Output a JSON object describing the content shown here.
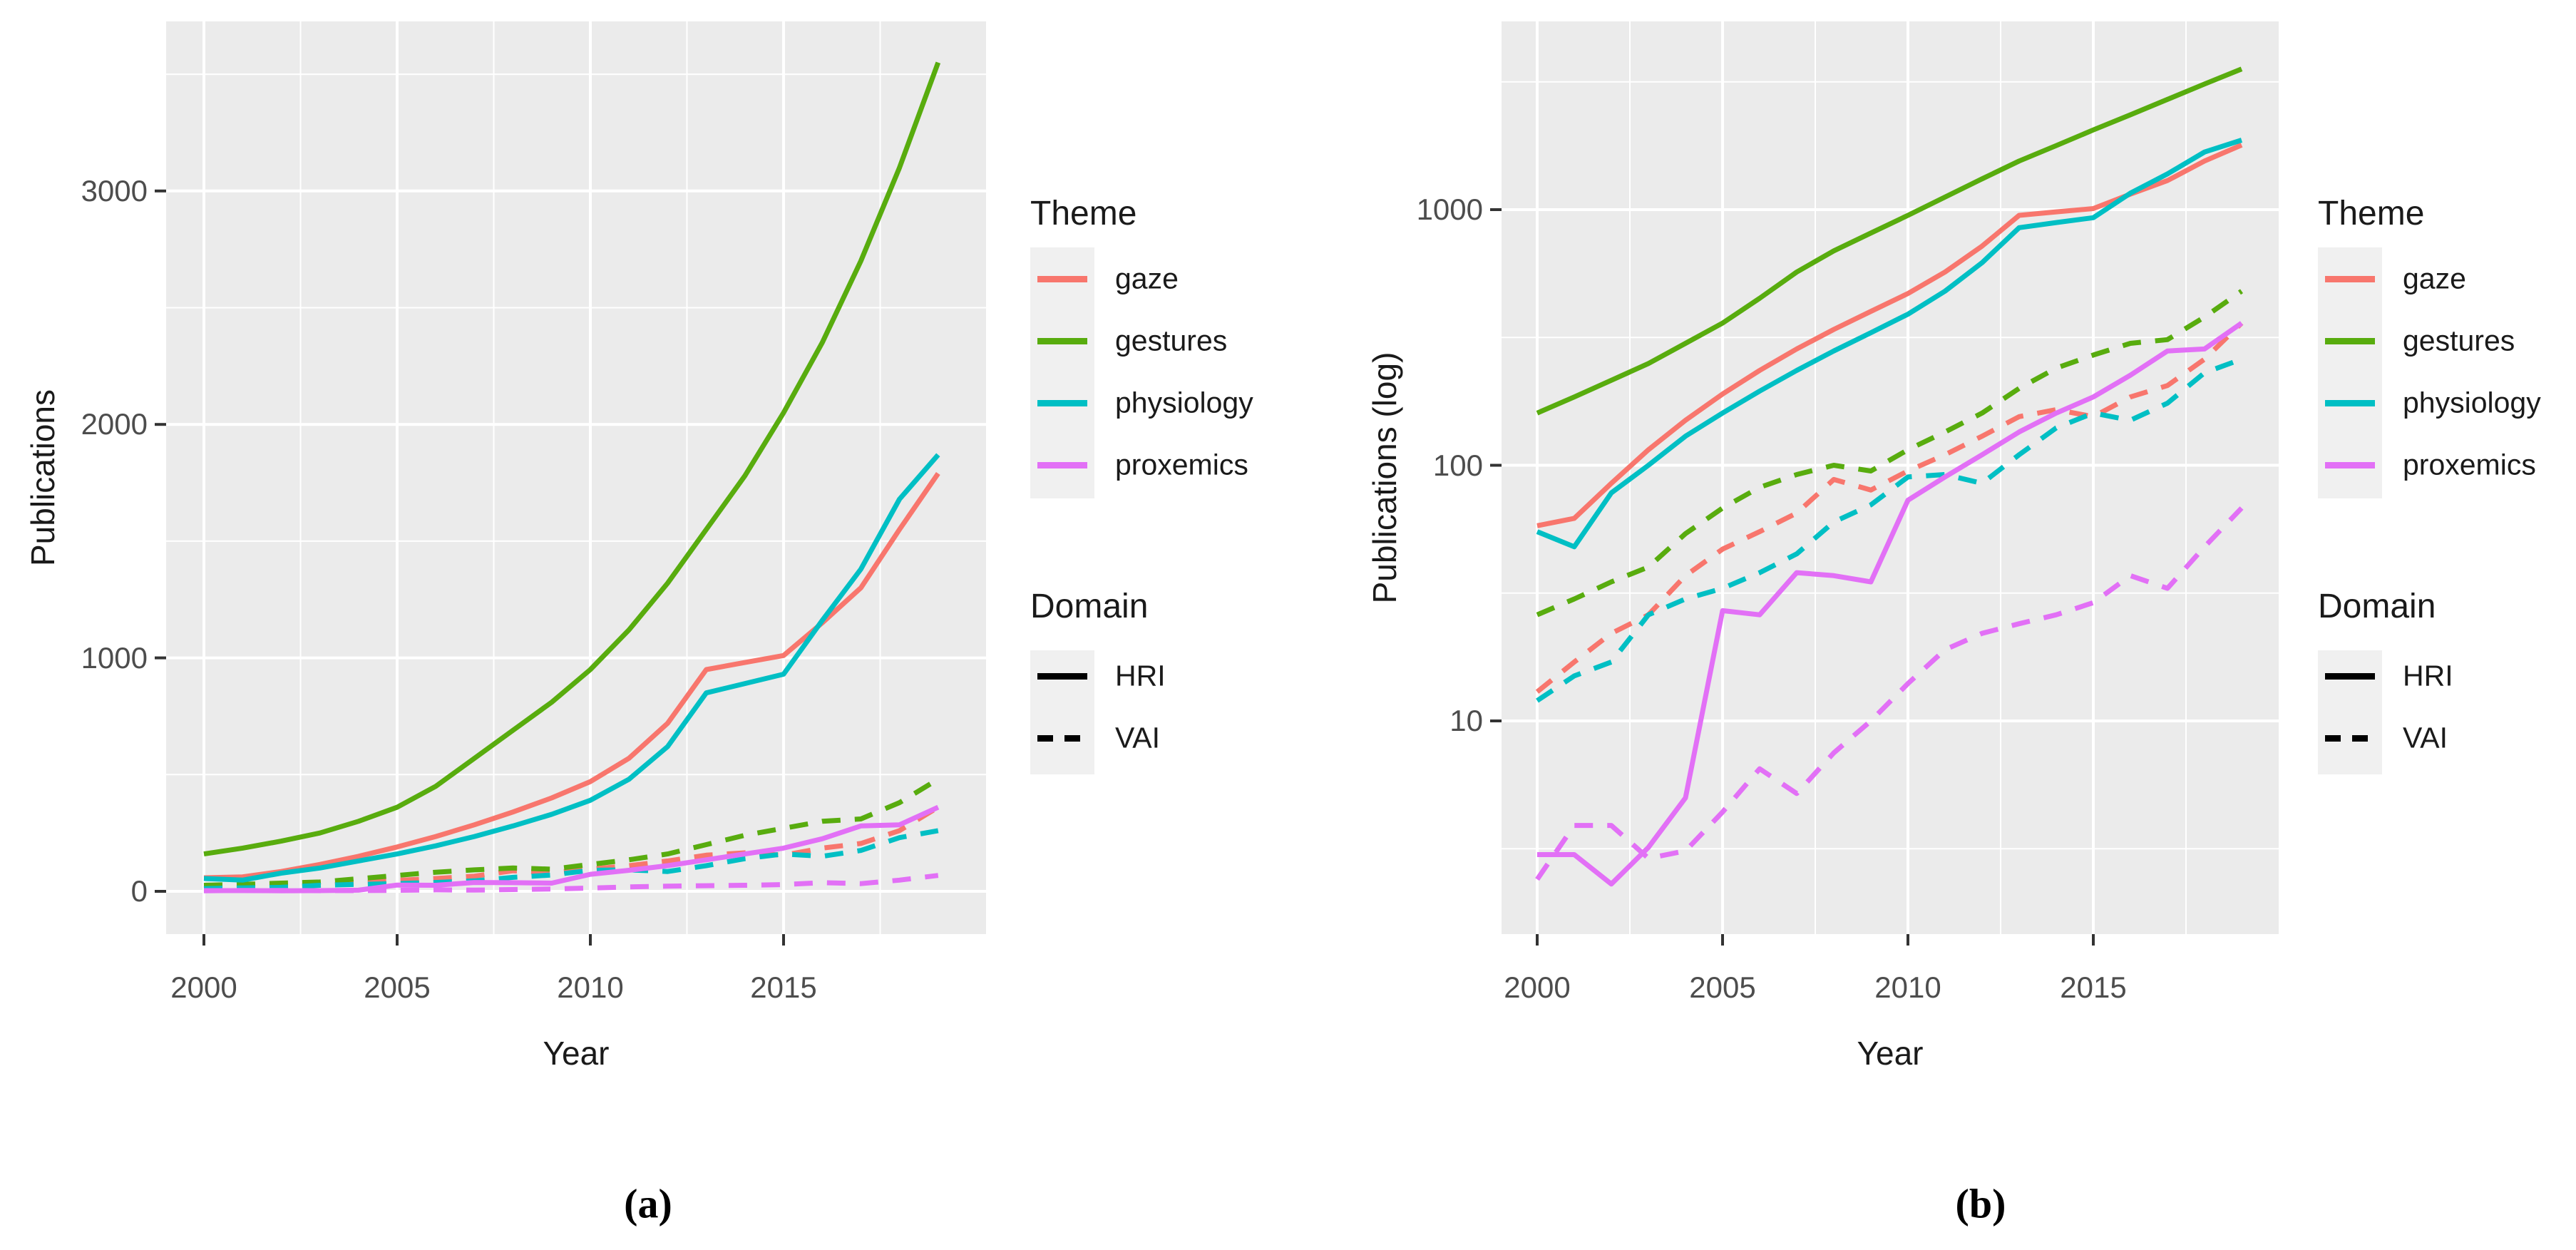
{
  "figure": {
    "captions": {
      "a": "(a)",
      "b": "(b)"
    }
  },
  "legend": {
    "theme": {
      "title": "Theme",
      "items": [
        {
          "label": "gaze",
          "color": "#F8766D"
        },
        {
          "label": "gestures",
          "color": "#58AC0E"
        },
        {
          "label": "physiology",
          "color": "#00BFC4"
        },
        {
          "label": "proxemics",
          "color": "#E270F6"
        }
      ]
    },
    "domain": {
      "title": "Domain",
      "items": [
        {
          "label": "HRI",
          "linetype": "solid"
        },
        {
          "label": "VAI",
          "linetype": "dashed"
        }
      ]
    }
  },
  "chart_data": [
    {
      "type": "line",
      "id": "a",
      "xlabel": "Year",
      "ylabel": "Publications",
      "y_scale": "linear",
      "x_ticks": [
        2000,
        2005,
        2010,
        2015
      ],
      "y_ticks": [
        0,
        1000,
        2000,
        3000
      ],
      "xlim": [
        1999.0,
        2020.3
      ],
      "ylim": [
        -180,
        3760
      ],
      "grid": true,
      "legend_position": "right",
      "x": [
        2000,
        2001,
        2002,
        2003,
        2004,
        2005,
        2006,
        2007,
        2008,
        2009,
        2010,
        2011,
        2012,
        2013,
        2014,
        2015,
        2016,
        2017,
        2018,
        2019
      ],
      "series": [
        {
          "name": "gaze HRI",
          "theme": "gaze",
          "domain": "HRI",
          "color": "#F8766D",
          "linetype": "solid",
          "values": [
            58,
            62,
            85,
            115,
            150,
            190,
            235,
            285,
            340,
            400,
            470,
            570,
            720,
            950,
            980,
            1010,
            1150,
            1300,
            1550,
            1790
          ]
        },
        {
          "name": "gaze VAI",
          "theme": "gaze",
          "domain": "VAI",
          "color": "#F8766D",
          "linetype": "dashed",
          "values": [
            13,
            17,
            22,
            26,
            37,
            47,
            55,
            65,
            88,
            80,
            95,
            110,
            130,
            155,
            165,
            155,
            185,
            205,
            260,
            360
          ]
        },
        {
          "name": "gestures HRI",
          "theme": "gestures",
          "domain": "HRI",
          "color": "#58AC0E",
          "linetype": "solid",
          "values": [
            160,
            185,
            215,
            250,
            300,
            360,
            450,
            570,
            690,
            810,
            950,
            1120,
            1320,
            1550,
            1780,
            2050,
            2350,
            2700,
            3100,
            3550
          ]
        },
        {
          "name": "gestures VAI",
          "theme": "gestures",
          "domain": "VAI",
          "color": "#58AC0E",
          "linetype": "dashed",
          "values": [
            26,
            30,
            35,
            40,
            54,
            68,
            82,
            92,
            100,
            95,
            115,
            135,
            160,
            200,
            240,
            270,
            300,
            310,
            380,
            480
          ]
        },
        {
          "name": "physiology HRI",
          "theme": "physiology",
          "domain": "HRI",
          "color": "#00BFC4",
          "linetype": "solid",
          "values": [
            55,
            48,
            78,
            100,
            130,
            160,
            195,
            235,
            280,
            330,
            390,
            480,
            620,
            850,
            890,
            930,
            1160,
            1380,
            1680,
            1870
          ]
        },
        {
          "name": "physiology VAI",
          "theme": "physiology",
          "domain": "VAI",
          "color": "#00BFC4",
          "linetype": "dashed",
          "values": [
            12,
            15,
            17,
            26,
            30,
            33,
            38,
            45,
            60,
            70,
            90,
            92,
            85,
            110,
            140,
            160,
            150,
            175,
            230,
            260
          ]
        },
        {
          "name": "proxemics HRI",
          "theme": "proxemics",
          "domain": "HRI",
          "color": "#E270F6",
          "linetype": "solid",
          "values": [
            3,
            3,
            2.3,
            3.2,
            5,
            27,
            26,
            38,
            37,
            35,
            73,
            90,
            110,
            135,
            160,
            185,
            225,
            280,
            285,
            360
          ]
        },
        {
          "name": "proxemics VAI",
          "theme": "proxemics",
          "domain": "VAI",
          "color": "#E270F6",
          "linetype": "dashed",
          "values": [
            2.4,
            3.9,
            3.9,
            2.9,
            3.1,
            4.4,
            6.5,
            5.2,
            7.5,
            10,
            14,
            19,
            22,
            24,
            26,
            29,
            37,
            33,
            48,
            68
          ]
        }
      ]
    },
    {
      "type": "line",
      "id": "b",
      "xlabel": "Year",
      "ylabel": "Publications (log)",
      "y_scale": "log",
      "x_ticks": [
        2000,
        2005,
        2010,
        2015
      ],
      "y_ticks": [
        10,
        100,
        1000
      ],
      "xlim": [
        1999.0,
        2020.3
      ],
      "ylim": [
        1.5,
        5400
      ],
      "grid": true,
      "legend_position": "right",
      "x": [
        2000,
        2001,
        2002,
        2003,
        2004,
        2005,
        2006,
        2007,
        2008,
        2009,
        2010,
        2011,
        2012,
        2013,
        2014,
        2015,
        2016,
        2017,
        2018,
        2019
      ],
      "series": [
        {
          "name": "gaze HRI",
          "theme": "gaze",
          "domain": "HRI",
          "color": "#F8766D",
          "linetype": "solid",
          "values": [
            58,
            62,
            85,
            115,
            150,
            190,
            235,
            285,
            340,
            400,
            470,
            570,
            720,
            950,
            980,
            1010,
            1150,
            1300,
            1550,
            1790
          ]
        },
        {
          "name": "gaze VAI",
          "theme": "gaze",
          "domain": "VAI",
          "color": "#F8766D",
          "linetype": "dashed",
          "values": [
            13,
            17,
            22,
            26,
            37,
            47,
            55,
            65,
            88,
            80,
            95,
            110,
            130,
            155,
            165,
            155,
            185,
            205,
            260,
            360
          ]
        },
        {
          "name": "gestures HRI",
          "theme": "gestures",
          "domain": "HRI",
          "color": "#58AC0E",
          "linetype": "solid",
          "values": [
            160,
            185,
            215,
            250,
            300,
            360,
            450,
            570,
            690,
            810,
            950,
            1120,
            1320,
            1550,
            1780,
            2050,
            2350,
            2700,
            3100,
            3550
          ]
        },
        {
          "name": "gestures VAI",
          "theme": "gestures",
          "domain": "VAI",
          "color": "#58AC0E",
          "linetype": "dashed",
          "values": [
            26,
            30,
            35,
            40,
            54,
            68,
            82,
            92,
            100,
            95,
            115,
            135,
            160,
            200,
            240,
            270,
            300,
            310,
            380,
            480
          ]
        },
        {
          "name": "physiology HRI",
          "theme": "physiology",
          "domain": "HRI",
          "color": "#00BFC4",
          "linetype": "solid",
          "values": [
            55,
            48,
            78,
            100,
            130,
            160,
            195,
            235,
            280,
            330,
            390,
            480,
            620,
            850,
            890,
            930,
            1160,
            1380,
            1680,
            1870
          ]
        },
        {
          "name": "physiology VAI",
          "theme": "physiology",
          "domain": "VAI",
          "color": "#00BFC4",
          "linetype": "dashed",
          "values": [
            12,
            15,
            17,
            26,
            30,
            33,
            38,
            45,
            60,
            70,
            90,
            92,
            85,
            110,
            140,
            160,
            150,
            175,
            230,
            260
          ]
        },
        {
          "name": "proxemics HRI",
          "theme": "proxemics",
          "domain": "HRI",
          "color": "#E270F6",
          "linetype": "solid",
          "values": [
            3,
            3,
            2.3,
            3.2,
            5,
            27,
            26,
            38,
            37,
            35,
            73,
            90,
            110,
            135,
            160,
            185,
            225,
            280,
            285,
            360
          ]
        },
        {
          "name": "proxemics VAI",
          "theme": "proxemics",
          "domain": "VAI",
          "color": "#E270F6",
          "linetype": "dashed",
          "values": [
            2.4,
            3.9,
            3.9,
            2.9,
            3.1,
            4.4,
            6.5,
            5.2,
            7.5,
            10,
            14,
            19,
            22,
            24,
            26,
            29,
            37,
            33,
            48,
            68
          ]
        }
      ]
    }
  ]
}
